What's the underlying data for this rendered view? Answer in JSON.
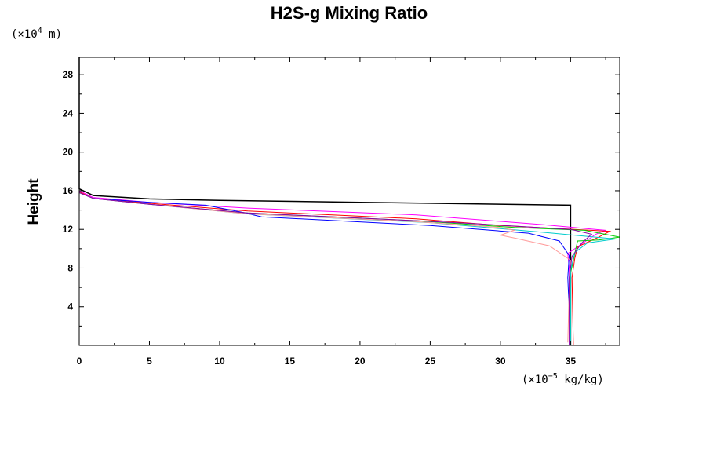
{
  "chart_data": {
    "type": "line",
    "title": "H2S-g Mixing Ratio",
    "ylabel": "Height",
    "xunit": {
      "prefix": "(×10",
      "exp": "−5",
      "suffix": " kg/kg)"
    },
    "yunit": {
      "prefix": "(×10",
      "exp": "4",
      "suffix": " m)"
    },
    "xlim": [
      0,
      38.5
    ],
    "ylim": [
      0,
      29.8
    ],
    "xticks": [
      0,
      5,
      10,
      15,
      20,
      25,
      30,
      35
    ],
    "xtick_labels": [
      "0",
      "5",
      "10",
      "15",
      "20",
      "25",
      "30",
      "35"
    ],
    "yticks": [
      4,
      8,
      12,
      16,
      20,
      24,
      28
    ],
    "ytick_labels": [
      "4",
      "8",
      "12",
      "16",
      "20",
      "24",
      "28"
    ],
    "grid": false,
    "series": [
      {
        "color": "#000000",
        "points": [
          [
            35,
            0
          ],
          [
            35,
            14.5
          ],
          [
            20,
            14.8
          ],
          [
            10,
            15.0
          ],
          [
            5,
            15.15
          ],
          [
            1,
            15.5
          ],
          [
            0,
            16.2
          ],
          [
            0,
            29.8
          ]
        ]
      },
      {
        "color": "#ff00ff",
        "points": [
          [
            35,
            0
          ],
          [
            34.9,
            8
          ],
          [
            34.8,
            9.5
          ],
          [
            36.8,
            11.5
          ],
          [
            37.5,
            11.9
          ],
          [
            33,
            12.5
          ],
          [
            24,
            13.5
          ],
          [
            12,
            14.2
          ],
          [
            5,
            14.8
          ],
          [
            1,
            15.3
          ],
          [
            0,
            16
          ],
          [
            0,
            29.8
          ]
        ]
      },
      {
        "color": "#ff0000",
        "points": [
          [
            35.2,
            0
          ],
          [
            35.1,
            7
          ],
          [
            35.3,
            9
          ],
          [
            35.5,
            10.2
          ],
          [
            37,
            11.2
          ],
          [
            37.8,
            11.8
          ],
          [
            30,
            12.4
          ],
          [
            24,
            13.1
          ],
          [
            12,
            13.9
          ],
          [
            5,
            14.7
          ],
          [
            1,
            15.2
          ],
          [
            0,
            15.9
          ]
        ]
      },
      {
        "color": "#00cc00",
        "points": [
          [
            35,
            0
          ],
          [
            35,
            7.5
          ],
          [
            35.5,
            10.8
          ],
          [
            37,
            10.9
          ],
          [
            38.5,
            11.2
          ],
          [
            36,
            11.9
          ],
          [
            31,
            12.2
          ],
          [
            24,
            12.9
          ],
          [
            12,
            13.7
          ],
          [
            5,
            14.6
          ],
          [
            1,
            15.2
          ],
          [
            0,
            15.8
          ]
        ]
      },
      {
        "color": "#0000ff",
        "points": [
          [
            35,
            0
          ],
          [
            34.8,
            7
          ],
          [
            34.9,
            9.3
          ],
          [
            34.2,
            10.8
          ],
          [
            32,
            11.6
          ],
          [
            25,
            12.4
          ],
          [
            13,
            13.3
          ],
          [
            11.5,
            13.8
          ],
          [
            9,
            14.5
          ],
          [
            5,
            14.8
          ],
          [
            1,
            15.2
          ],
          [
            0,
            15.8
          ]
        ]
      },
      {
        "color": "#00cccc",
        "points": [
          [
            35,
            0
          ],
          [
            35,
            7.8
          ],
          [
            35.3,
            9.6
          ],
          [
            36.2,
            10.6
          ],
          [
            38.2,
            11.0
          ],
          [
            33,
            11.7
          ],
          [
            25,
            12.7
          ],
          [
            12,
            13.6
          ],
          [
            5,
            14.6
          ],
          [
            1,
            15.2
          ],
          [
            0,
            15.8
          ]
        ]
      },
      {
        "color": "#ff9999",
        "points": [
          [
            34.8,
            0.3
          ],
          [
            34.9,
            6
          ],
          [
            35,
            8.8
          ],
          [
            33.5,
            10.3
          ],
          [
            31,
            11.1
          ],
          [
            30,
            11.4
          ],
          [
            31,
            11.9
          ],
          [
            30,
            12.2
          ],
          [
            24,
            12.8
          ],
          [
            12,
            13.6
          ],
          [
            5,
            14.6
          ],
          [
            1,
            15.2
          ],
          [
            0,
            15.8
          ]
        ]
      },
      {
        "color": "#8800aa",
        "points": [
          [
            34.9,
            0
          ],
          [
            34.9,
            7
          ],
          [
            35.1,
            9.2
          ],
          [
            35.8,
            10.6
          ],
          [
            36.5,
            11.5
          ],
          [
            35,
            12.0
          ],
          [
            28,
            12.6
          ],
          [
            24,
            12.9
          ],
          [
            12,
            13.7
          ],
          [
            5,
            14.6
          ],
          [
            1,
            15.2
          ],
          [
            0,
            15.8
          ]
        ]
      }
    ]
  }
}
